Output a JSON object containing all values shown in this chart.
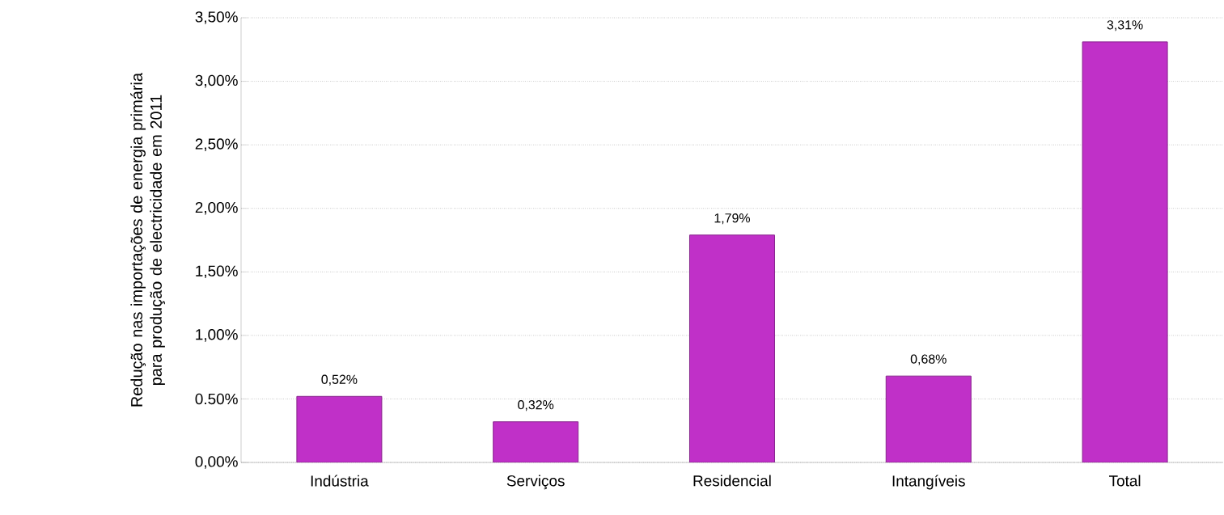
{
  "chart_data": {
    "type": "bar",
    "ylabel": "Redução nas importações de energia primária para produção de electricidade em 2011",
    "categories": [
      "Indústria",
      "Serviços",
      "Residencial",
      "Intangíveis",
      "Total"
    ],
    "values": [
      0.52,
      0.32,
      1.79,
      0.68,
      3.31
    ],
    "value_labels": [
      "0,52%",
      "0,32%",
      "1,79%",
      "0,68%",
      "3,31%"
    ],
    "color": "#c030c8",
    "ylim": [
      0,
      3.5
    ],
    "yticks": [
      {
        "value": 0,
        "label": "0,00%"
      },
      {
        "value": 0.5,
        "label": "0.50%"
      },
      {
        "value": 1,
        "label": "1,00%"
      },
      {
        "value": 1.5,
        "label": "1,50%"
      },
      {
        "value": 2,
        "label": "2,00%"
      },
      {
        "value": 2.5,
        "label": "2,50%"
      },
      {
        "value": 3,
        "label": "3,00%"
      },
      {
        "value": 3.5,
        "label": "3,50%"
      }
    ],
    "grid": "y",
    "legend": false
  }
}
